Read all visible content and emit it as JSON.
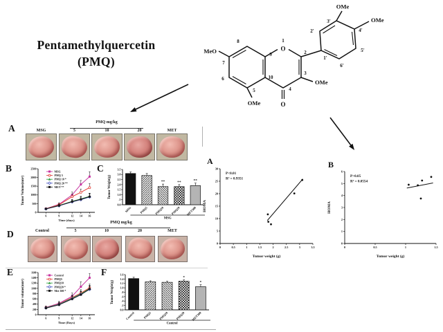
{
  "title": {
    "line1": "Pentamethylquercetin",
    "line2": "(PMQ)"
  },
  "structure": {
    "groups": {
      "meo7": "MeO",
      "ome5": "OMe",
      "ome3": "OMe",
      "ome3p": "OMe",
      "ome4p": "OMe"
    },
    "atoms": {
      "o1": "O",
      "o4": "O"
    },
    "numbers": {
      "n1": "1",
      "n2": "2",
      "n3": "3",
      "n4": "4",
      "n5": "5",
      "n6": "6",
      "n7": "7",
      "n8": "8",
      "n9": "9",
      "n10": "10",
      "n1p": "1'",
      "n2p": "2'",
      "n3p": "3'",
      "n4p": "4'",
      "n5p": "5'",
      "n6p": "6'"
    }
  },
  "panels": {
    "A": {
      "label": "A",
      "header": "PMQ mg/kg",
      "columns": [
        "MSG",
        "5",
        "10",
        "20",
        "MET"
      ]
    },
    "B": {
      "label": "B"
    },
    "C": {
      "label": "C"
    },
    "D": {
      "label": "D",
      "header": "PMQ mg/kg",
      "columns": [
        "Control",
        "5",
        "10",
        "20",
        "MET"
      ]
    },
    "E": {
      "label": "E"
    },
    "F": {
      "label": "F"
    },
    "scatterA": {
      "label": "A"
    },
    "scatterB": {
      "label": "B"
    }
  },
  "chart_data": [
    {
      "panel": "B",
      "type": "line",
      "x": [
        6,
        9,
        12,
        14,
        16
      ],
      "xticklabels": [
        "6",
        "9",
        "12",
        "14",
        "16"
      ],
      "ylim": [
        0,
        2500
      ],
      "yticks": [
        "0",
        "500",
        "1000",
        "1500",
        "2000",
        "2500"
      ],
      "ylabel": "Tumor Volume(mm³)",
      "xlabel": "Time (days)",
      "legend_position": "top-left",
      "series": [
        {
          "name": "MSG",
          "color": "#c733a1",
          "marker": "square",
          "values": [
            210,
            460,
            1000,
            1600,
            2050
          ],
          "errors": [
            40,
            90,
            160,
            230,
            280
          ]
        },
        {
          "name": "PMQ 5",
          "color": "#e23b33",
          "marker": "circle-open",
          "values": [
            205,
            430,
            900,
            1150,
            1420
          ],
          "errors": [
            40,
            80,
            140,
            190,
            230
          ]
        },
        {
          "name": "PMQ 10 *",
          "color": "#33a042",
          "marker": "triangle",
          "values": [
            200,
            395,
            630,
            770,
            920
          ],
          "errors": [
            35,
            70,
            110,
            150,
            180
          ]
        },
        {
          "name": "PMQ 20 **",
          "color": "#4553c0",
          "marker": "diamond-open",
          "values": [
            195,
            375,
            600,
            730,
            880
          ],
          "errors": [
            35,
            65,
            100,
            140,
            170
          ]
        },
        {
          "name": "MET **",
          "color": "#1a1a1a",
          "marker": "square",
          "values": [
            200,
            385,
            615,
            750,
            900
          ],
          "errors": [
            35,
            70,
            105,
            145,
            175
          ]
        }
      ]
    },
    {
      "panel": "C",
      "type": "bar",
      "categories": [
        "MSG",
        "PMQ5",
        "PMQ10",
        "PMQ20",
        "MET300"
      ],
      "values": [
        3.1,
        2.9,
        1.8,
        1.8,
        1.9
      ],
      "errors": [
        0.15,
        0.2,
        0.25,
        0.2,
        0.25
      ],
      "sig": [
        "",
        "",
        "**",
        "**",
        "**"
      ],
      "fills": [
        "solid-black",
        "hatch-down",
        "hatch-up",
        "checker",
        "solid-gray"
      ],
      "ylim": [
        0,
        3.5
      ],
      "yticks": [
        "0.0",
        ".5",
        "1.0",
        "1.5",
        "2.0",
        "2.5",
        "3.0",
        "3.5"
      ],
      "ylabel": "Tumor Weight(g)",
      "group_label": "MSG",
      "group_span": [
        1,
        4
      ]
    },
    {
      "panel": "E",
      "type": "line",
      "x": [
        6,
        9,
        12,
        14,
        16
      ],
      "xticklabels": [
        "6",
        "9",
        "12",
        "14",
        "16"
      ],
      "ylim": [
        0,
        1600
      ],
      "yticks": [
        "0",
        "200",
        "400",
        "600",
        "800",
        "1000",
        "1200",
        "1400",
        "1600"
      ],
      "ylabel": "Tumor volume(mm³)",
      "xlabel": "Time (Days)",
      "legend_position": "top-left",
      "series": [
        {
          "name": "Control",
          "color": "#c733a1",
          "marker": "square",
          "values": [
            280,
            430,
            700,
            1060,
            1400
          ],
          "errors": [
            50,
            80,
            120,
            190,
            160
          ]
        },
        {
          "name": "PMQ5",
          "color": "#e23b33",
          "marker": "circle-open",
          "values": [
            270,
            405,
            650,
            820,
            1020
          ],
          "errors": [
            45,
            70,
            100,
            130,
            140
          ]
        },
        {
          "name": "PMQ10",
          "color": "#33a042",
          "marker": "triangle",
          "values": [
            265,
            395,
            625,
            790,
            990
          ],
          "errors": [
            40,
            65,
            95,
            120,
            130
          ]
        },
        {
          "name": "PMQ20 *",
          "color": "#4553c0",
          "marker": "diamond-open",
          "values": [
            255,
            385,
            605,
            770,
            960
          ],
          "errors": [
            40,
            60,
            90,
            115,
            125
          ]
        },
        {
          "name": "Met 300 *",
          "color": "#1a1a1a",
          "marker": "square",
          "values": [
            250,
            375,
            595,
            760,
            975
          ],
          "errors": [
            40,
            60,
            90,
            110,
            120
          ]
        }
      ]
    },
    {
      "panel": "F",
      "type": "bar",
      "categories": [
        "Control",
        "PMQ5",
        "PMQ10",
        "PMQ20",
        "MET300"
      ],
      "values": [
        1.42,
        1.27,
        1.25,
        1.3,
        1.05
      ],
      "errors": [
        0.06,
        0.05,
        0.05,
        0.06,
        0.09
      ],
      "sig": [
        "",
        "",
        "",
        "*",
        "*"
      ],
      "fills": [
        "solid-black",
        "hatch-down",
        "hatch-up",
        "checker",
        "solid-gray"
      ],
      "ylim": [
        0,
        1.6
      ],
      "yticks": [
        "0.0",
        ".2",
        ".4",
        ".6",
        ".8",
        "1.0",
        "1.2",
        "1.4",
        "1.6"
      ],
      "ylabel": "Tumor Weight(g)",
      "group_label": "Control",
      "group_span": [
        1,
        4
      ]
    },
    {
      "panel": "scatterA",
      "type": "scatter",
      "points": [
        [
          1.8,
          11.7
        ],
        [
          1.82,
          8.7
        ],
        [
          1.92,
          7.7
        ],
        [
          2.8,
          20.1
        ],
        [
          3.1,
          25.5
        ]
      ],
      "trend": [
        [
          1.78,
          9.2
        ],
        [
          3.12,
          25.9
        ]
      ],
      "p_value": "P<0.01",
      "r_squared": "R² = 0.9351",
      "xlim": [
        0,
        3.5
      ],
      "xticks": [
        "0",
        "0.5",
        "1",
        "1.5",
        "2",
        "2.5",
        "3",
        "3.5"
      ],
      "ylim": [
        0,
        30
      ],
      "yticks": [
        "0",
        "5",
        "10",
        "15",
        "20",
        "25",
        "30"
      ],
      "xlabel": "Tumor weight (g)",
      "ylabel": "HOMA"
    },
    {
      "panel": "scatterB",
      "type": "scatter",
      "points": [
        [
          1.05,
          4.9
        ],
        [
          1.2,
          4.85
        ],
        [
          1.27,
          5.25
        ],
        [
          1.25,
          3.75
        ],
        [
          1.42,
          5.55
        ]
      ],
      "trend": [
        [
          1.02,
          4.62
        ],
        [
          1.45,
          5.05
        ]
      ],
      "p_value": "P>0.05",
      "r_squared": "R² = 0.0554",
      "xlim": [
        0,
        1.5
      ],
      "xticks": [
        "0",
        "0.5",
        "1",
        "1.5"
      ],
      "ylim": [
        0,
        6
      ],
      "yticks": [
        "0",
        "1",
        "2",
        "3",
        "4",
        "5",
        "6"
      ],
      "xlabel": "Tumor weight (g)",
      "ylabel": "HOMA"
    }
  ]
}
